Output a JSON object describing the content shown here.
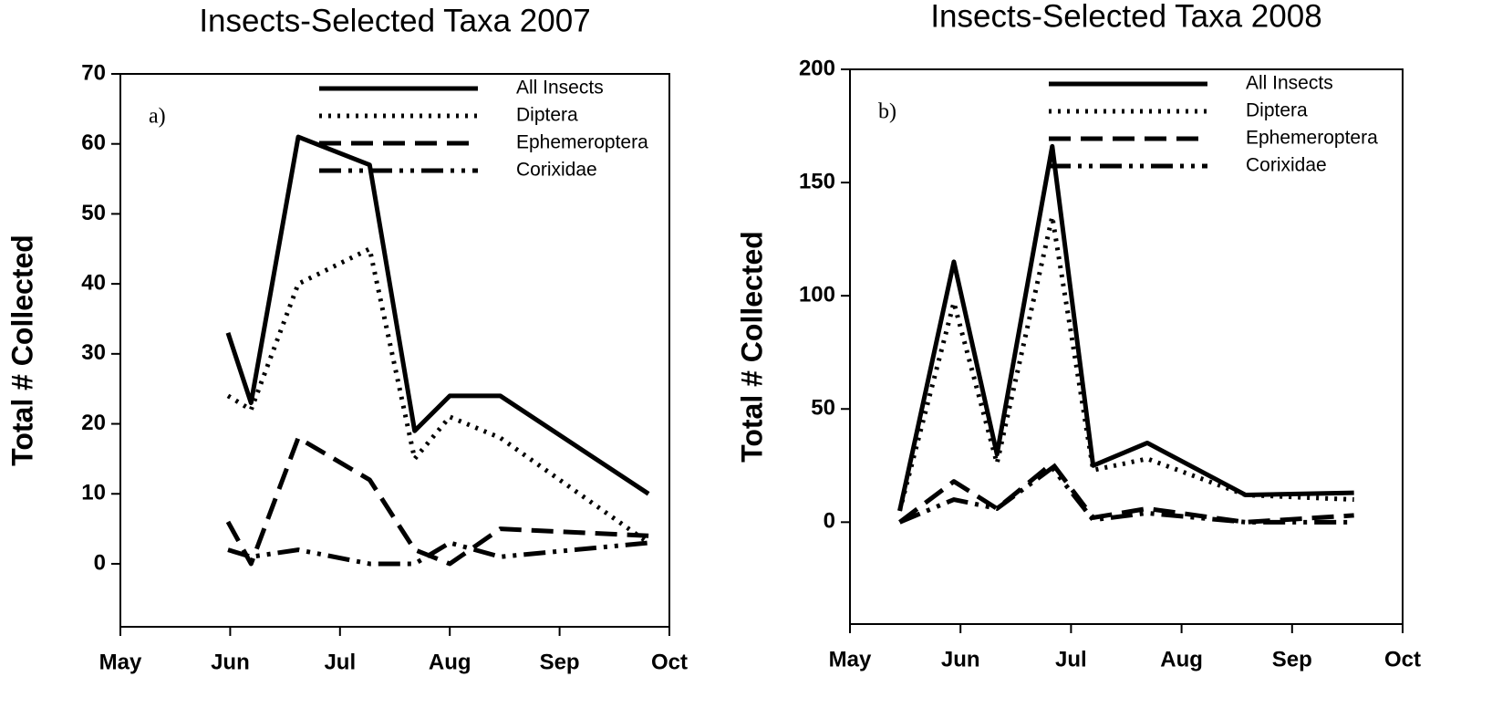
{
  "chart_data": [
    {
      "type": "line",
      "title": "Insects-Selected Taxa 2007",
      "y_label": "Total # Collected",
      "annotation": "a)",
      "xlim": [
        0,
        5
      ],
      "xticks": [
        {
          "value": 0,
          "label": "May"
        },
        {
          "value": 1,
          "label": "Jun"
        },
        {
          "value": 2,
          "label": "Jul"
        },
        {
          "value": 3,
          "label": "Aug"
        },
        {
          "value": 4,
          "label": "Sep"
        },
        {
          "value": 5,
          "label": "Oct"
        }
      ],
      "ylim": [
        -9,
        70
      ],
      "yticks": [
        0,
        10,
        20,
        30,
        40,
        50,
        60,
        70
      ],
      "legend": "top-right",
      "x": [
        0.98,
        1.19,
        1.62,
        2.27,
        2.68,
        3.0,
        3.46,
        4.81
      ],
      "series": [
        {
          "name": "All Insects",
          "color": "#000000",
          "dash": "solid",
          "values": [
            33,
            23,
            61,
            57,
            19,
            24,
            24,
            10
          ]
        },
        {
          "name": "Diptera",
          "color": "#000000",
          "dash": "dotted",
          "values": [
            24,
            22,
            40,
            45,
            15,
            21,
            18,
            3
          ]
        },
        {
          "name": "Ephemeroptera",
          "color": "#000000",
          "dash": "dashed",
          "values": [
            6,
            0,
            18,
            12,
            2,
            0,
            5,
            4
          ]
        },
        {
          "name": "Corixidae",
          "color": "#000000",
          "dash": "dashdotdot",
          "values": [
            2,
            1,
            2,
            0,
            0,
            3,
            1,
            3
          ]
        }
      ]
    },
    {
      "type": "line",
      "title": "Insects-Selected Taxa 2008",
      "y_label": "Total # Collected",
      "annotation": "b)",
      "xlim": [
        0,
        5
      ],
      "xticks": [
        {
          "value": 0,
          "label": "May"
        },
        {
          "value": 1,
          "label": "Jun"
        },
        {
          "value": 2,
          "label": "Jul"
        },
        {
          "value": 3,
          "label": "Aug"
        },
        {
          "value": 4,
          "label": "Sep"
        },
        {
          "value": 5,
          "label": "Oct"
        }
      ],
      "ylim": [
        -45,
        200
      ],
      "yticks": [
        0,
        50,
        100,
        150,
        200
      ],
      "legend": "top-right",
      "x": [
        0.45,
        0.94,
        1.33,
        1.83,
        2.2,
        2.69,
        3.58,
        4.56
      ],
      "series": [
        {
          "name": "All Insects",
          "color": "#000000",
          "dash": "solid",
          "values": [
            5,
            115,
            30,
            166,
            25,
            35,
            12,
            13
          ]
        },
        {
          "name": "Diptera",
          "color": "#000000",
          "dash": "dotted",
          "values": [
            5,
            97,
            26,
            135,
            23,
            28,
            12,
            10
          ]
        },
        {
          "name": "Ephemeroptera",
          "color": "#000000",
          "dash": "dashed",
          "values": [
            0,
            18,
            6,
            26,
            2,
            6,
            0,
            3
          ]
        },
        {
          "name": "Corixidae",
          "color": "#000000",
          "dash": "dashdotdot",
          "values": [
            0,
            10,
            6,
            24,
            1,
            4,
            0,
            0
          ]
        }
      ]
    }
  ]
}
